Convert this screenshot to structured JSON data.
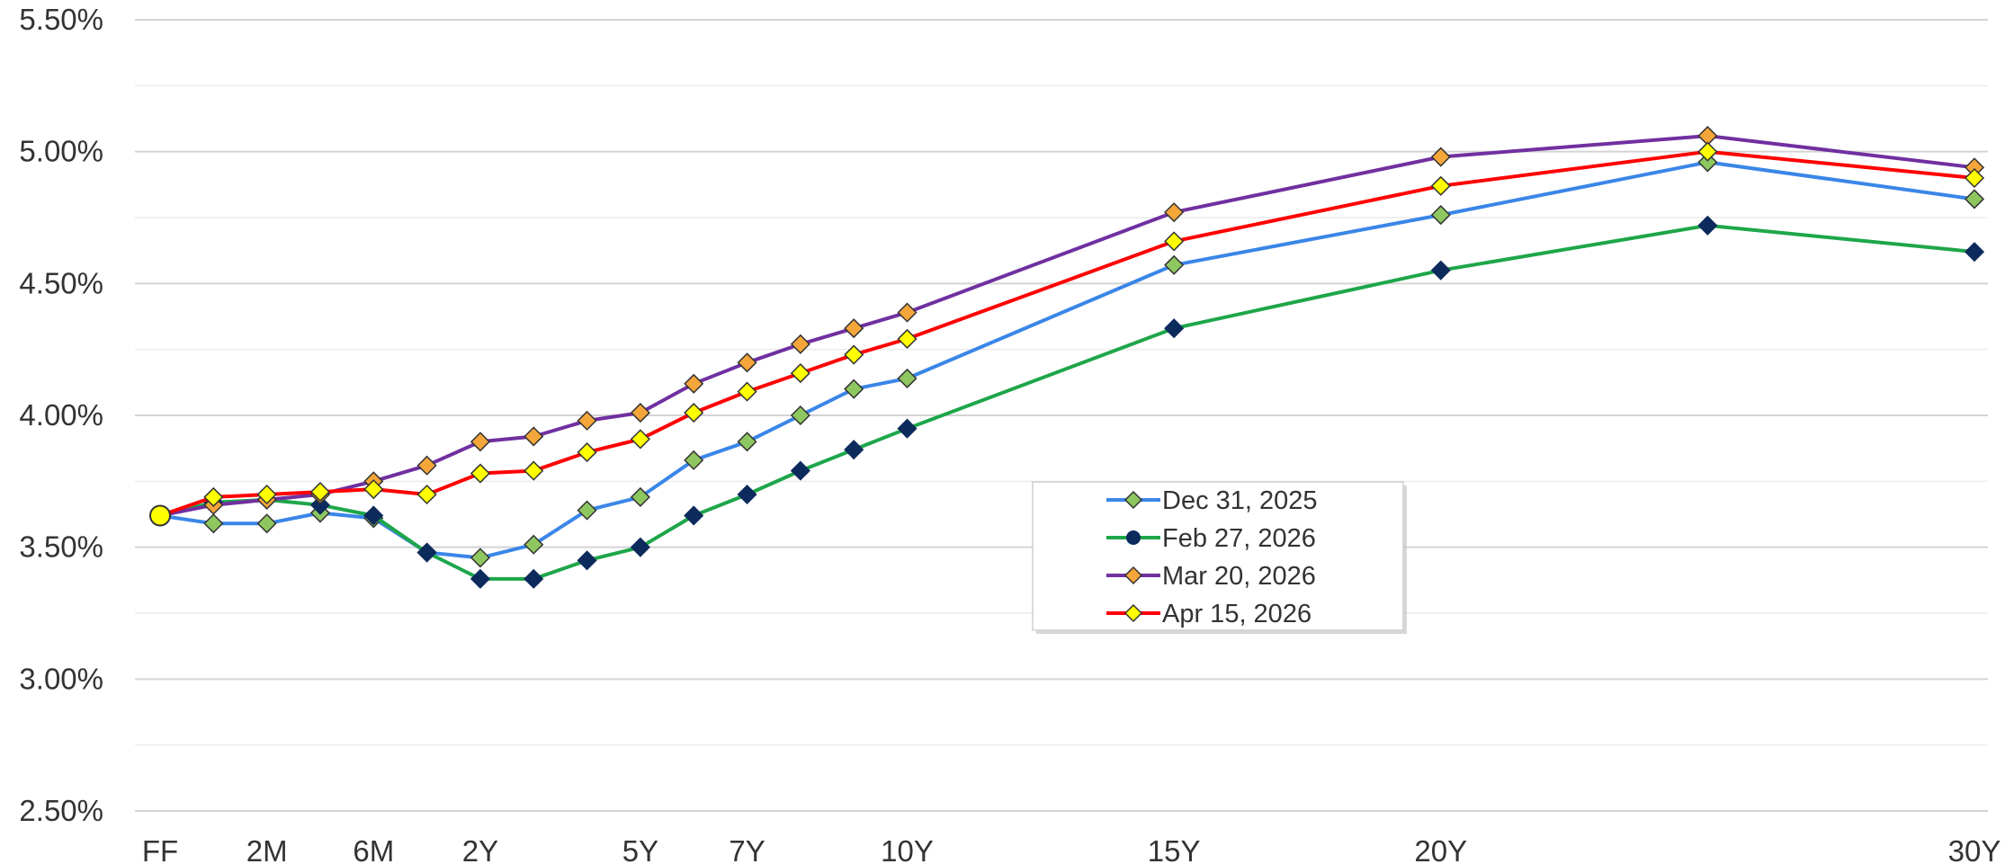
{
  "chart_data": {
    "type": "line",
    "title": "",
    "xlabel": "",
    "ylabel": "",
    "ylim": [
      0.025,
      0.055
    ],
    "y_ticks": [
      "5.50%",
      "5.00%",
      "4.50%",
      "4.00%",
      "3.50%",
      "3.00%",
      "2.50%"
    ],
    "y_tick_values": [
      0.055,
      0.05,
      0.045,
      0.04,
      0.035,
      0.03,
      0.025
    ],
    "x_labels": [
      "FF",
      "2M",
      "6M",
      "2Y",
      "5Y",
      "7Y",
      "10Y",
      "15Y",
      "20Y",
      "30Y"
    ],
    "x_label_positions": [
      0,
      2,
      4,
      6,
      9,
      11,
      14,
      19,
      24,
      34
    ],
    "x_index_max": 34,
    "grid": true,
    "legend_position": "center-right",
    "series": [
      {
        "name": "Dec 31, 2025",
        "color": "#3a86e8",
        "marker_fill": "#8ec760",
        "marker": "diamond",
        "x": [
          0,
          1,
          2,
          3,
          4,
          5,
          6,
          7,
          8,
          9,
          10,
          11,
          12,
          13,
          14,
          19,
          24,
          29,
          34
        ],
        "values": [
          0.0362,
          0.0359,
          0.0359,
          0.0363,
          0.0361,
          0.0348,
          0.0346,
          0.0351,
          0.0364,
          0.0369,
          0.0383,
          0.039,
          0.04,
          0.041,
          0.0414,
          0.0457,
          0.0476,
          0.0496,
          0.0482
        ]
      },
      {
        "name": "Feb 27, 2026",
        "color": "#1ea64a",
        "marker_fill": "#0d2a5c",
        "marker": "diamond",
        "x": [
          0,
          1,
          2,
          3,
          4,
          5,
          6,
          7,
          8,
          9,
          10,
          11,
          12,
          13,
          14,
          19,
          24,
          29,
          34
        ],
        "values": [
          0.0362,
          0.0367,
          0.0368,
          0.0366,
          0.0362,
          0.0348,
          0.0338,
          0.0338,
          0.0345,
          0.035,
          0.0362,
          0.037,
          0.0379,
          0.0387,
          0.0395,
          0.0433,
          0.0455,
          0.0472,
          0.0462
        ]
      },
      {
        "name": "Mar 20, 2026",
        "color": "#7030a0",
        "marker_fill": "#f4a63a",
        "marker": "diamond",
        "x": [
          0,
          1,
          2,
          3,
          4,
          5,
          6,
          7,
          8,
          9,
          10,
          11,
          12,
          13,
          14,
          19,
          24,
          29,
          34
        ],
        "values": [
          0.0362,
          0.0366,
          0.0368,
          0.037,
          0.0375,
          0.0381,
          0.039,
          0.0392,
          0.0398,
          0.0401,
          0.0412,
          0.042,
          0.0427,
          0.0433,
          0.0439,
          0.0477,
          0.0498,
          0.0506,
          0.0494
        ]
      },
      {
        "name": "Apr 15, 2026",
        "color": "#ff0000",
        "marker_fill": "#ffff00",
        "marker": "diamond",
        "x": [
          0,
          1,
          2,
          3,
          4,
          5,
          6,
          7,
          8,
          9,
          10,
          11,
          12,
          13,
          14,
          19,
          24,
          29,
          34
        ],
        "values": [
          0.0362,
          0.0369,
          0.037,
          0.0371,
          0.0372,
          0.037,
          0.0378,
          0.0379,
          0.0386,
          0.0391,
          0.0401,
          0.0409,
          0.0416,
          0.0423,
          0.0429,
          0.0466,
          0.0487,
          0.05,
          0.049
        ]
      }
    ],
    "highlight_point": {
      "x": 0,
      "value": 0.0362,
      "fill": "#ffff00"
    }
  }
}
